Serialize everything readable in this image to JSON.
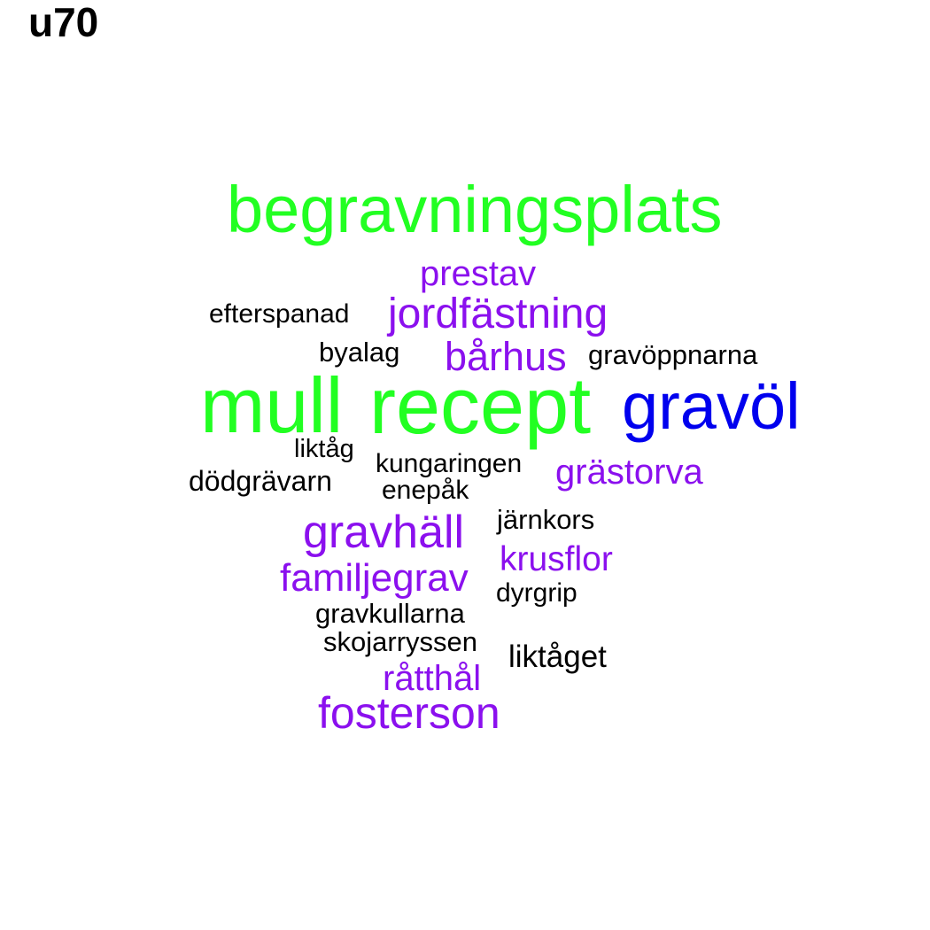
{
  "title": "u70",
  "colors": {
    "green": "#22ff22",
    "blue": "#0000ee",
    "purple": "#8b10ee",
    "black": "#000000"
  },
  "words": {
    "begravningsplats": "begravningsplats",
    "prestav": "prestav",
    "jordfastning": "jordfästning",
    "efterspanad": "efterspanad",
    "byalag": "byalag",
    "barhus": "bårhus",
    "gravoppnarna": "gravöppnarna",
    "mull": "mull",
    "recept": "recept",
    "gravol": "gravöl",
    "liktag": "liktåg",
    "kungaringen": "kungaringen",
    "grastorva": "grästorva",
    "dodgravarn": "dödgrävarn",
    "enepak": "enepåk",
    "gravhall": "gravhäll",
    "jarnkors": "järnkors",
    "krusflor": "krusflor",
    "familjegrav": "familjegrav",
    "dyrgrip": "dyrgrip",
    "gravkullarna": "gravkullarna",
    "skojarryssen": "skojarryssen",
    "liktaget": "liktåget",
    "ratthal": "råtthål",
    "fosterson": "fosterson"
  }
}
